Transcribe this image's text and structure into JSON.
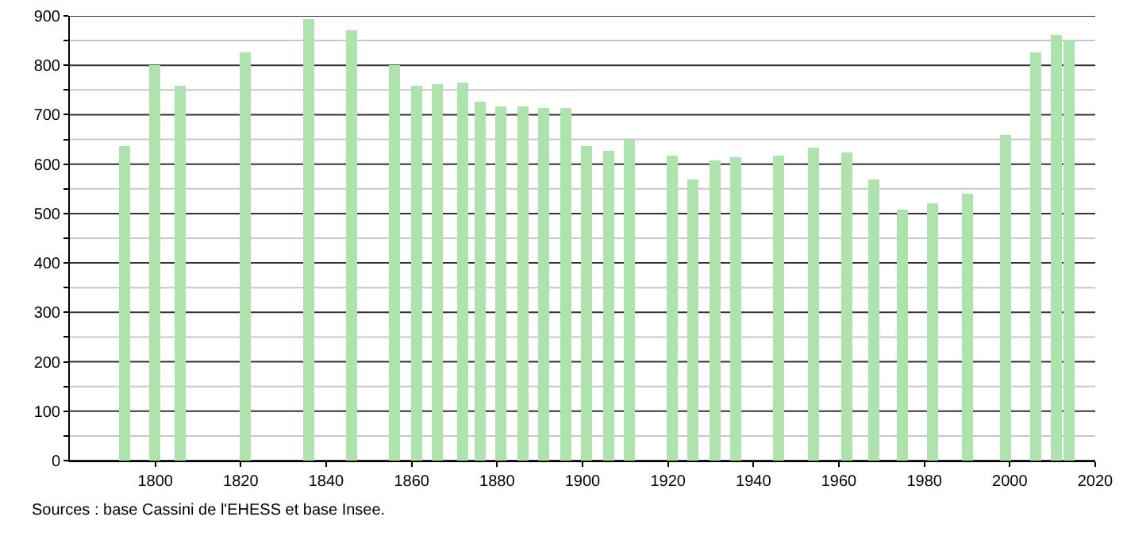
{
  "chart_data": {
    "type": "bar",
    "x": [
      1793,
      1800,
      1806,
      1821,
      1836,
      1846,
      1856,
      1861,
      1866,
      1872,
      1876,
      1881,
      1886,
      1891,
      1896,
      1901,
      1906,
      1911,
      1921,
      1926,
      1931,
      1936,
      1946,
      1954,
      1962,
      1968,
      1975,
      1982,
      1990,
      1999,
      2006,
      2011,
      2014
    ],
    "values": [
      635,
      800,
      760,
      825,
      895,
      870,
      800,
      757,
      762,
      765,
      728,
      718,
      718,
      715,
      712,
      635,
      626,
      650,
      617,
      570,
      608,
      614,
      617,
      632,
      623,
      570,
      508,
      520,
      540,
      660,
      825,
      862,
      853
    ],
    "color": "#ade3ad",
    "xlim": [
      1780,
      2020
    ],
    "xticks": [
      1800,
      1820,
      1840,
      1860,
      1880,
      1900,
      1920,
      1940,
      1960,
      1980,
      2000,
      2020
    ],
    "ylim": [
      0,
      900
    ],
    "yticks": [
      0,
      {
        "value": 50,
        "label": null
      },
      100,
      {
        "value": 150,
        "label": null
      },
      200,
      {
        "value": 250,
        "label": null
      },
      300,
      {
        "value": 350,
        "label": null
      },
      400,
      {
        "value": 450,
        "label": null
      },
      500,
      {
        "value": 550,
        "label": null
      },
      600,
      {
        "value": 650,
        "label": null
      },
      700,
      {
        "value": 750,
        "label": null
      },
      800,
      {
        "value": 850,
        "label": null
      },
      900
    ],
    "grid": "y",
    "annotations": [
      "Sources : base Cassini de l'EHESS et base Insee."
    ]
  }
}
